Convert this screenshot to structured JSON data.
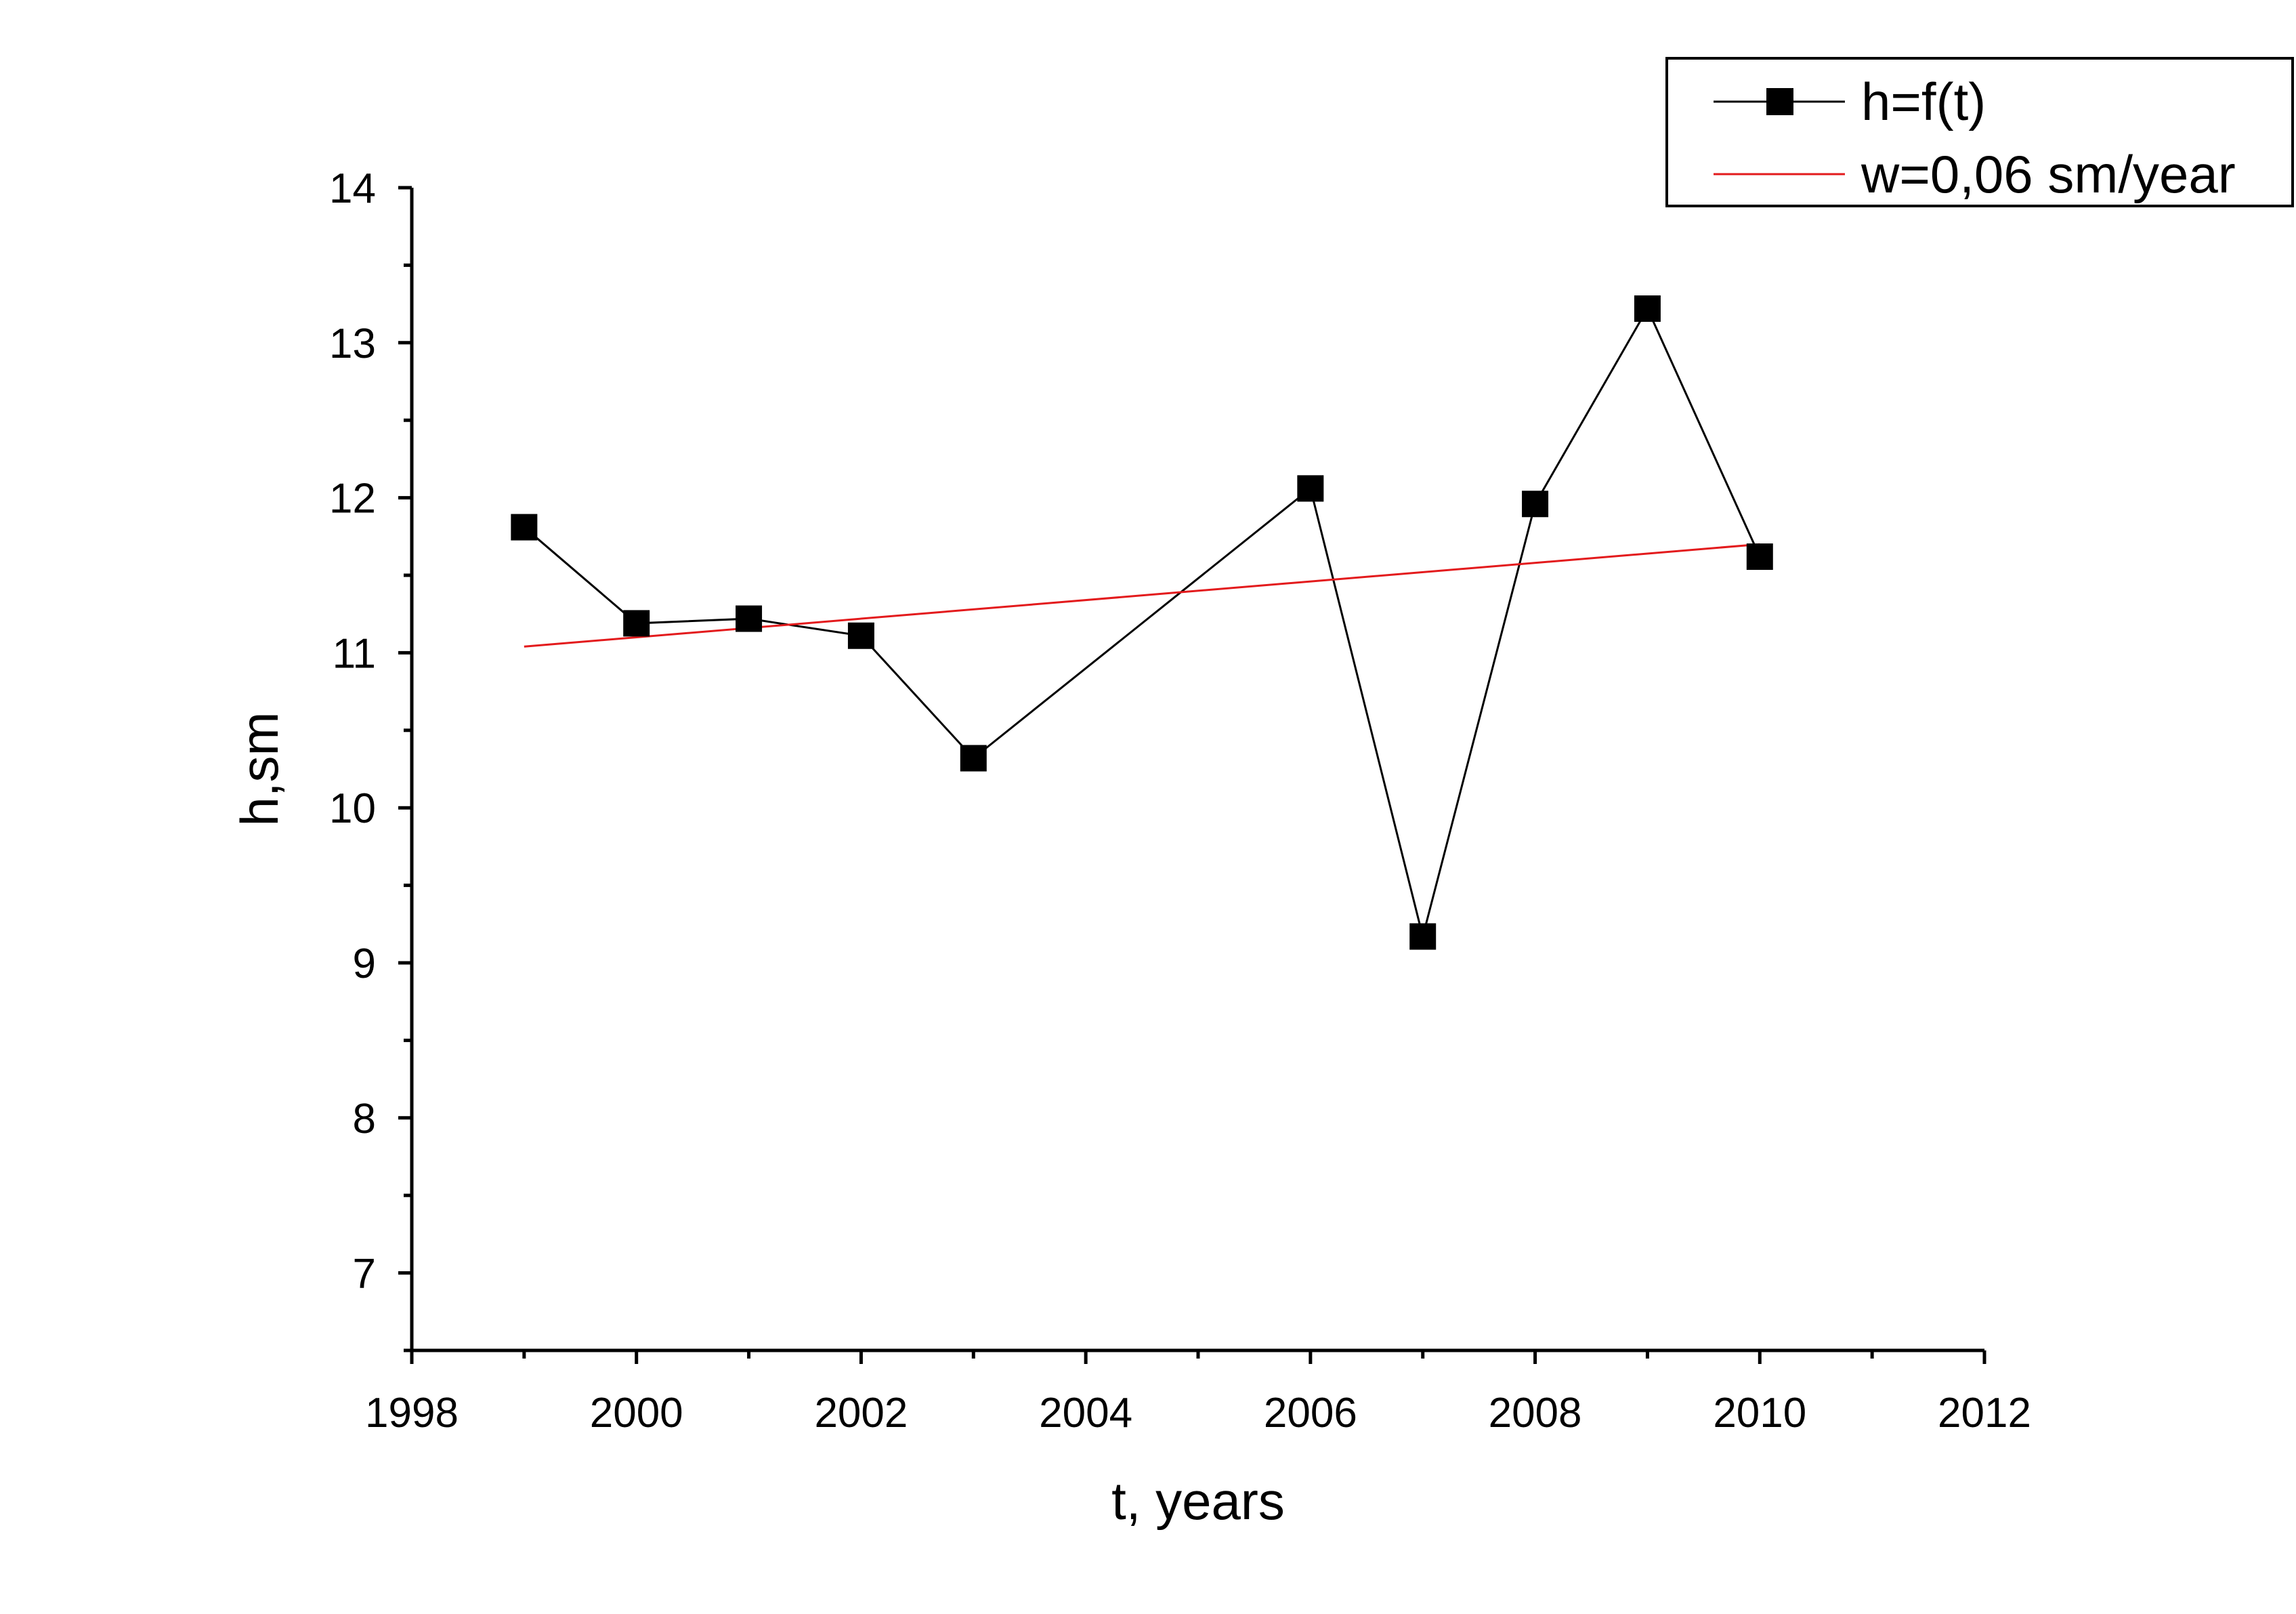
{
  "chart_data": {
    "type": "line",
    "xlabel": "t, years",
    "ylabel": "h,sm",
    "xlim": [
      1998,
      2012
    ],
    "ylim": [
      6.5,
      14
    ],
    "x_ticks": [
      1998,
      2000,
      2002,
      2004,
      2006,
      2008,
      2010,
      2012
    ],
    "y_ticks": [
      7,
      8,
      9,
      10,
      11,
      12,
      13,
      14
    ],
    "grid": false,
    "legend_position": "top-right",
    "series": [
      {
        "name": "h=f(t)",
        "color": "#000000",
        "marker": "square",
        "x": [
          1999,
          2000,
          2001,
          2002,
          2003,
          2006,
          2007,
          2008,
          2009,
          2010
        ],
        "y": [
          11.81,
          11.19,
          11.22,
          11.11,
          10.32,
          12.06,
          9.17,
          11.96,
          13.22,
          11.62
        ]
      },
      {
        "name": "w=0,06 sm/year",
        "color": "#e31a1c",
        "marker": "none",
        "x": [
          1999,
          2010
        ],
        "y": [
          11.04,
          11.7
        ]
      }
    ]
  }
}
